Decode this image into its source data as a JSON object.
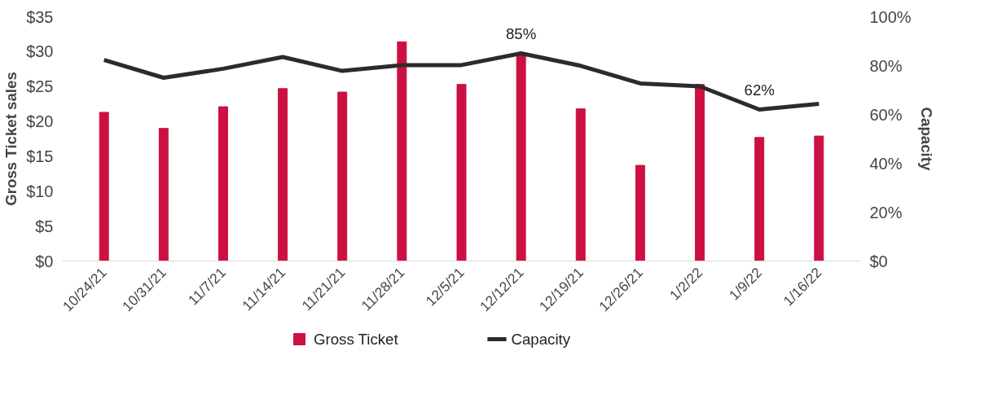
{
  "chart_data": {
    "type": "bar",
    "xlabel": null,
    "ylabel": "Gross Ticket sales",
    "y2label": "Capacity",
    "categories": [
      "10/24/21",
      "10/31/21",
      "11/7/21",
      "11/14/21",
      "11/21/21",
      "11/28/21",
      "12/5/21",
      "12/12/21",
      "12/19/21",
      "12/26/21",
      "1/2/22",
      "1/9/22",
      "1/16/22"
    ],
    "series": [
      {
        "name": "Gross Ticket",
        "color": "#cc1142",
        "values": [
          21.3,
          19.0,
          22.1,
          24.7,
          24.2,
          31.4,
          25.3,
          29.5,
          21.8,
          13.7,
          25.3,
          17.7,
          17.9
        ]
      },
      {
        "name": "Capacity",
        "type": "line",
        "axis": "y2",
        "color": "#2b2b2b",
        "values": [
          82.3,
          75,
          78.7,
          83.5,
          77.8,
          80.2,
          80.2,
          85,
          79.9,
          72.7,
          71.5,
          62,
          64.3
        ],
        "value_labels": [
          null,
          null,
          null,
          null,
          null,
          null,
          null,
          "85%",
          null,
          null,
          null,
          "62%",
          null
        ]
      }
    ],
    "ylim": [
      0,
      35
    ],
    "yticks": [
      {
        "value": 0,
        "label": "$0"
      },
      {
        "value": 5,
        "label": "$5"
      },
      {
        "value": 10,
        "label": "$10"
      },
      {
        "value": 15,
        "label": "$15"
      },
      {
        "value": 20,
        "label": "$20"
      },
      {
        "value": 25,
        "label": "$25"
      },
      {
        "value": 30,
        "label": "$30"
      },
      {
        "value": 35,
        "label": "$35"
      }
    ],
    "y2lim": [
      0,
      100
    ],
    "y2ticks": [
      {
        "value": 0,
        "label": "$0"
      },
      {
        "value": 20,
        "label": "20%"
      },
      {
        "value": 40,
        "label": "40%"
      },
      {
        "value": 60,
        "label": "60%"
      },
      {
        "value": 80,
        "label": "80%"
      },
      {
        "value": 100,
        "label": "100%"
      }
    ],
    "grid": false,
    "legend": "bottom",
    "marker": "none",
    "line_style": "solid"
  }
}
